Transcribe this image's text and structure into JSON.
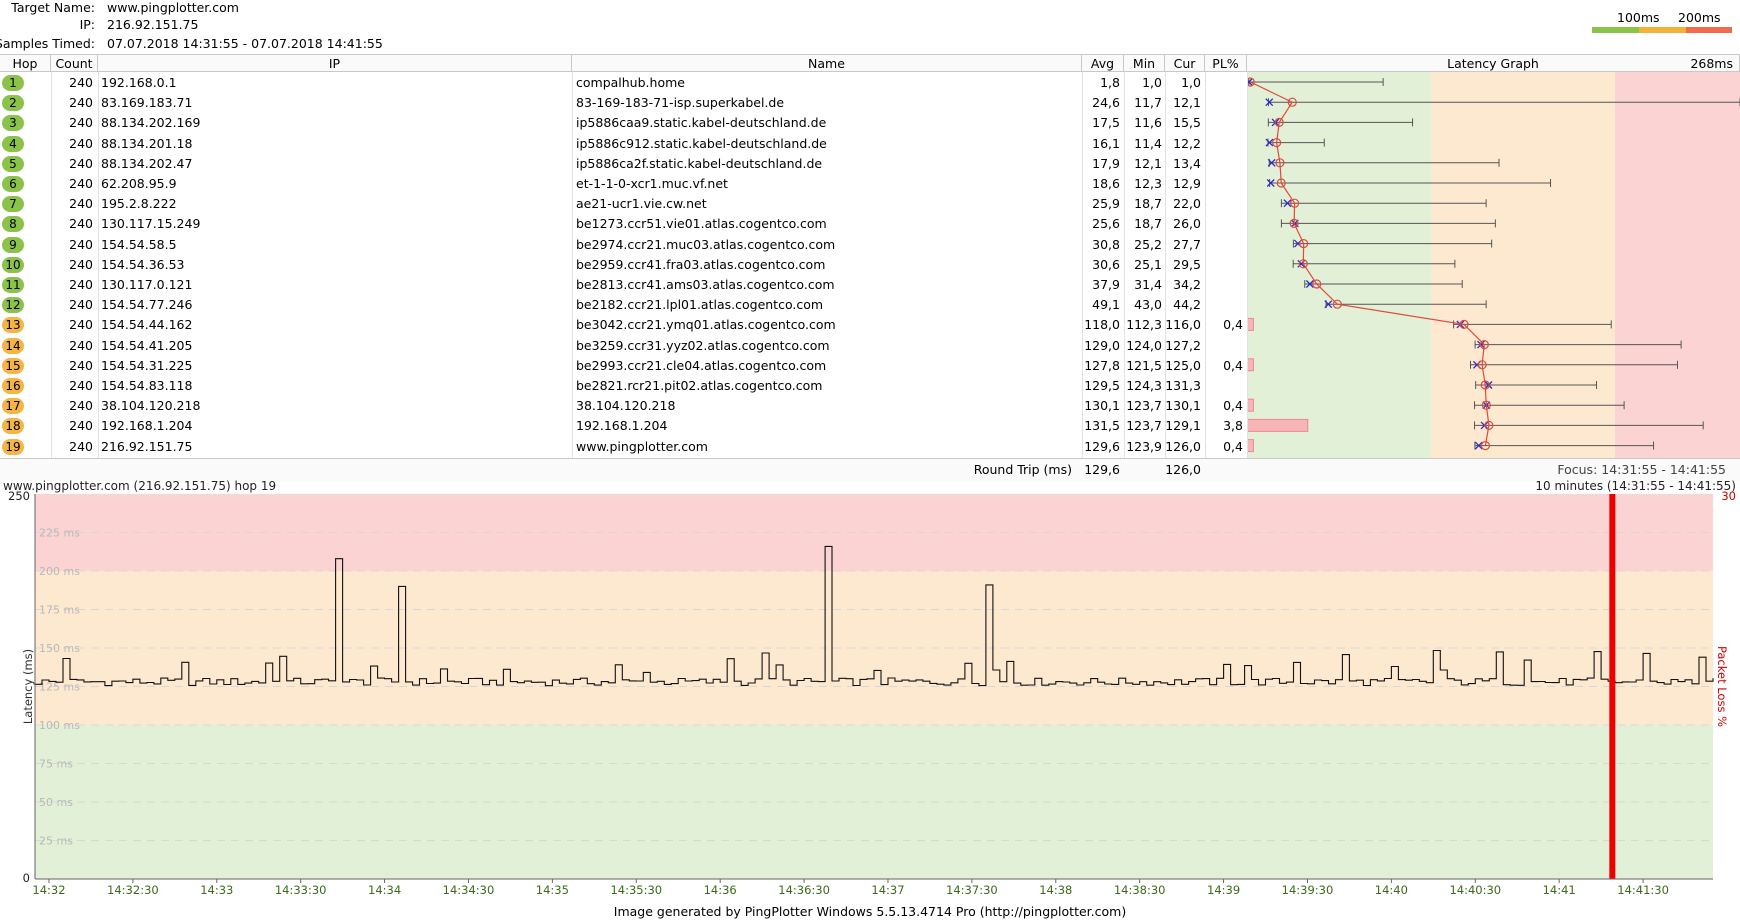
{
  "header": {
    "target_label": "Target Name:",
    "target_value": "www.pingplotter.com",
    "ip_label": "IP:",
    "ip_value": "216.92.151.75",
    "samples_label": "Samples Timed:",
    "samples_value": "07.07.2018 14:31:55 - 07.07.2018 14:41:55",
    "legend_100": "100ms",
    "legend_200": "200ms",
    "legend_colors": [
      "#8bc34a",
      "#f2b233",
      "#f26b4a"
    ]
  },
  "table": {
    "columns": [
      "Hop",
      "Count",
      "IP",
      "Name",
      "Avg",
      "Min",
      "Cur",
      "PL%",
      "Latency Graph"
    ],
    "graph_max_label": "268ms",
    "rows": [
      {
        "hop": "1",
        "count": "240",
        "ip": "192.168.0.1",
        "name": "compalhub.home",
        "avg": "1,8",
        "min": "1,0",
        "cur": "1,0",
        "pl": "",
        "status": "green"
      },
      {
        "hop": "2",
        "count": "240",
        "ip": "83.169.183.71",
        "name": "83-169-183-71-isp.superkabel.de",
        "avg": "24,6",
        "min": "11,7",
        "cur": "12,1",
        "pl": "",
        "status": "green"
      },
      {
        "hop": "3",
        "count": "240",
        "ip": "88.134.202.169",
        "name": "ip5886caa9.static.kabel-deutschland.de",
        "avg": "17,5",
        "min": "11,6",
        "cur": "15,5",
        "pl": "",
        "status": "green"
      },
      {
        "hop": "4",
        "count": "240",
        "ip": "88.134.201.18",
        "name": "ip5886c912.static.kabel-deutschland.de",
        "avg": "16,1",
        "min": "11,4",
        "cur": "12,2",
        "pl": "",
        "status": "green"
      },
      {
        "hop": "5",
        "count": "240",
        "ip": "88.134.202.47",
        "name": "ip5886ca2f.static.kabel-deutschland.de",
        "avg": "17,9",
        "min": "12,1",
        "cur": "13,4",
        "pl": "",
        "status": "green"
      },
      {
        "hop": "6",
        "count": "240",
        "ip": "62.208.95.9",
        "name": "et-1-1-0-xcr1.muc.vf.net",
        "avg": "18,6",
        "min": "12,3",
        "cur": "12,9",
        "pl": "",
        "status": "green"
      },
      {
        "hop": "7",
        "count": "240",
        "ip": "195.2.8.222",
        "name": "ae21-ucr1.vie.cw.net",
        "avg": "25,9",
        "min": "18,7",
        "cur": "22,0",
        "pl": "",
        "status": "green"
      },
      {
        "hop": "8",
        "count": "240",
        "ip": "130.117.15.249",
        "name": "be1273.ccr51.vie01.atlas.cogentco.com",
        "avg": "25,6",
        "min": "18,7",
        "cur": "26,0",
        "pl": "",
        "status": "green"
      },
      {
        "hop": "9",
        "count": "240",
        "ip": "154.54.58.5",
        "name": "be2974.ccr21.muc03.atlas.cogentco.com",
        "avg": "30,8",
        "min": "25,2",
        "cur": "27,7",
        "pl": "",
        "status": "green"
      },
      {
        "hop": "10",
        "count": "240",
        "ip": "154.54.36.53",
        "name": "be2959.ccr41.fra03.atlas.cogentco.com",
        "avg": "30,6",
        "min": "25,1",
        "cur": "29,5",
        "pl": "",
        "status": "green"
      },
      {
        "hop": "11",
        "count": "240",
        "ip": "130.117.0.121",
        "name": "be2813.ccr41.ams03.atlas.cogentco.com",
        "avg": "37,9",
        "min": "31,4",
        "cur": "34,2",
        "pl": "",
        "status": "green"
      },
      {
        "hop": "12",
        "count": "240",
        "ip": "154.54.77.246",
        "name": "be2182.ccr21.lpl01.atlas.cogentco.com",
        "avg": "49,1",
        "min": "43,0",
        "cur": "44,2",
        "pl": "",
        "status": "green"
      },
      {
        "hop": "13",
        "count": "240",
        "ip": "154.54.44.162",
        "name": "be3042.ccr21.ymq01.atlas.cogentco.com",
        "avg": "118,0",
        "min": "112,3",
        "cur": "116,0",
        "pl": "0,4",
        "status": "orange"
      },
      {
        "hop": "14",
        "count": "240",
        "ip": "154.54.41.205",
        "name": "be3259.ccr31.yyz02.atlas.cogentco.com",
        "avg": "129,0",
        "min": "124,0",
        "cur": "127,2",
        "pl": "",
        "status": "orange"
      },
      {
        "hop": "15",
        "count": "240",
        "ip": "154.54.31.225",
        "name": "be2993.ccr21.cle04.atlas.cogentco.com",
        "avg": "127,8",
        "min": "121,5",
        "cur": "125,0",
        "pl": "0,4",
        "status": "orange"
      },
      {
        "hop": "16",
        "count": "240",
        "ip": "154.54.83.118",
        "name": "be2821.rcr21.pit02.atlas.cogentco.com",
        "avg": "129,5",
        "min": "124,3",
        "cur": "131,3",
        "pl": "",
        "status": "orange"
      },
      {
        "hop": "17",
        "count": "240",
        "ip": "38.104.120.218",
        "name": "38.104.120.218",
        "avg": "130,1",
        "min": "123,7",
        "cur": "130,1",
        "pl": "0,4",
        "status": "orange"
      },
      {
        "hop": "18",
        "count": "240",
        "ip": "192.168.1.204",
        "name": "192.168.1.204",
        "avg": "131,5",
        "min": "123,7",
        "cur": "129,1",
        "pl": "3,8",
        "status": "orange"
      },
      {
        "hop": "19",
        "count": "240",
        "ip": "216.92.151.75",
        "name": "www.pingplotter.com",
        "avg": "129,6",
        "min": "123,9",
        "cur": "126,0",
        "pl": "0,4",
        "status": "orange"
      }
    ],
    "graph_max_ms": [
      74,
      268,
      90,
      42,
      137,
      165,
      130,
      135,
      133,
      113,
      117,
      130,
      198,
      236,
      234,
      190,
      205,
      248,
      221
    ],
    "summary": {
      "label": "Round Trip (ms)",
      "avg": "129,6",
      "cur": "126,0",
      "focus": "Focus: 14:31:55 - 14:41:55"
    }
  },
  "chart_data": {
    "type": "line",
    "title": "www.pingplotter.com (216.92.151.75) hop 19",
    "time_span": "10 minutes (14:31:55 - 14:41:55)",
    "ylabel": "Latency (ms)",
    "y2label": "Packet Loss %",
    "ylim": [
      0,
      250
    ],
    "y_axis_end_labels": [
      "250",
      "0"
    ],
    "y2_max_label": "30",
    "y_ticks": [
      "225 ms",
      "200 ms",
      "175 ms",
      "150 ms",
      "125 ms",
      "100 ms",
      "75 ms",
      "50 ms",
      "25 ms"
    ],
    "x_ticks": [
      "14:32",
      "14:32:30",
      "14:33",
      "14:33:30",
      "14:34",
      "14:34:30",
      "14:35",
      "14:35:30",
      "14:36",
      "14:36:30",
      "14:37",
      "14:37:30",
      "14:38",
      "14:38:30",
      "14:39",
      "14:39:30",
      "14:40",
      "14:40:30",
      "14:41",
      "14:41:30"
    ],
    "zones": [
      {
        "from": 0,
        "to": 100,
        "color": "#e2f0d7"
      },
      {
        "from": 100,
        "to": 200,
        "color": "#fde9cf"
      },
      {
        "from": 200,
        "to": 250,
        "color": "#fbd3d3"
      }
    ],
    "x_range_seconds": "14:31:55 - 14:41:55",
    "packet_loss_events": [
      {
        "time": "14:41:19",
        "percent": 30
      }
    ],
    "spikes": [
      {
        "time": "14:33:42",
        "ms": 208
      },
      {
        "time": "14:34:04",
        "ms": 190
      },
      {
        "time": "14:36:38",
        "ms": 216
      },
      {
        "time": "14:37:35",
        "ms": 191
      }
    ],
    "baseline_ms": 128
  },
  "footer": {
    "text": "Image generated by PingPlotter Windows 5.5.13.4714 Pro (http://pingplotter.com)"
  }
}
